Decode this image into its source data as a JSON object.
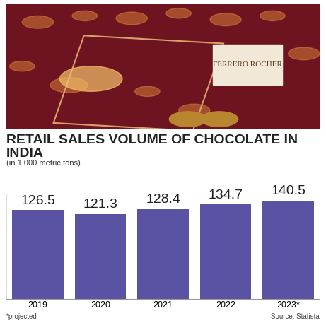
{
  "chart_data": {
    "type": "bar",
    "title": "RETAIL SALES VOLUME OF CHOCOLATE IN INDIA",
    "subtitle": "(in 1,000 metric tons)",
    "annotations": [
      "FERRERO ROCHER",
      "*projected",
      "Source: Statista"
    ],
    "categories": [
      "2019",
      "2020",
      "2021",
      "2022",
      "2023*"
    ],
    "values": [
      126.5,
      121.3,
      128.4,
      134.7,
      140.5
    ],
    "color": "#5a52a3",
    "ylim": [
      0,
      150
    ],
    "data_labels": true,
    "tick_labels": "x",
    "grid": false
  }
}
